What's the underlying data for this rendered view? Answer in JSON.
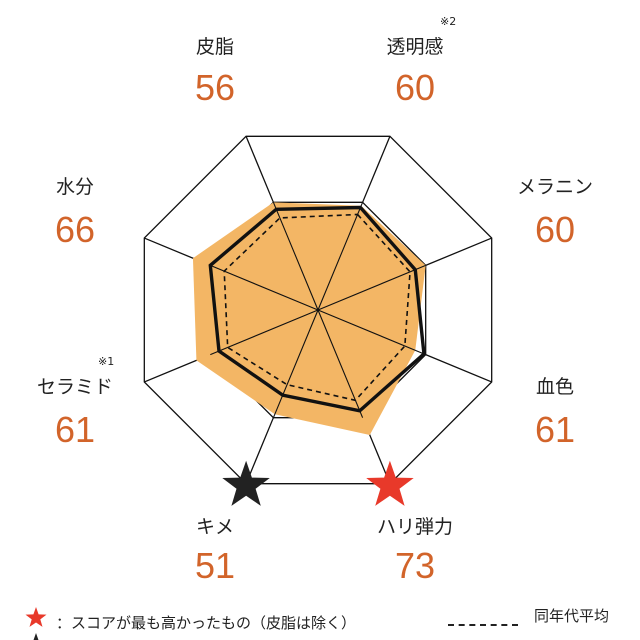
{
  "chart_data": {
    "type": "radar",
    "axes": [
      {
        "label": "透明感",
        "value": 60,
        "note": "※2"
      },
      {
        "label": "メラニン",
        "value": 60,
        "note": ""
      },
      {
        "label": "血色",
        "value": 61,
        "note": ""
      },
      {
        "label": "ハリ弾力",
        "value": 73,
        "note": ""
      },
      {
        "label": "キメ",
        "value": 51,
        "note": ""
      },
      {
        "label": "セラミド",
        "value": 61,
        "note": "※1"
      },
      {
        "label": "水分",
        "value": 66,
        "note": ""
      },
      {
        "label": "皮脂",
        "value": 56,
        "note": ""
      }
    ],
    "series": [
      {
        "name": "",
        "style": "filled-orange",
        "values": [
          60,
          62,
          56,
          72,
          60,
          70,
          72,
          62
        ]
      },
      {
        "name": "",
        "style": "bold-outline",
        "values": [
          59,
          56,
          61,
          58,
          49,
          57,
          62,
          58
        ]
      },
      {
        "name": "同年代平均",
        "style": "dashed",
        "values": [
          55,
          53,
          50,
          52,
          43,
          52,
          54,
          53
        ]
      }
    ],
    "range": [
      0,
      100
    ],
    "markers": [
      {
        "axis": "ハリ弾力",
        "shape": "star",
        "color": "#e8392a"
      },
      {
        "axis": "キメ",
        "shape": "star",
        "color": "#222222"
      }
    ],
    "colors": {
      "fill": "#f3b665",
      "value_text": "#d2642a",
      "line": "#111111"
    }
  },
  "legend": {
    "star_orange_text": "：スコアが最も高かったもの（皮脂は除く）",
    "dashed_text": "同年代平均"
  }
}
